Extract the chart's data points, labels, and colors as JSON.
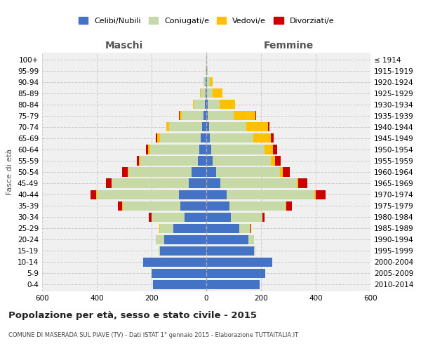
{
  "age_groups": [
    "0-4",
    "5-9",
    "10-14",
    "15-19",
    "20-24",
    "25-29",
    "30-34",
    "35-39",
    "40-44",
    "45-49",
    "50-54",
    "55-59",
    "60-64",
    "65-69",
    "70-74",
    "75-79",
    "80-84",
    "85-89",
    "90-94",
    "95-99",
    "100+"
  ],
  "birth_years": [
    "2010-2014",
    "2005-2009",
    "2000-2004",
    "1995-1999",
    "1990-1994",
    "1985-1989",
    "1980-1984",
    "1975-1979",
    "1970-1974",
    "1965-1969",
    "1960-1964",
    "1955-1959",
    "1950-1954",
    "1945-1949",
    "1940-1944",
    "1935-1939",
    "1930-1934",
    "1925-1929",
    "1920-1924",
    "1915-1919",
    "≤ 1914"
  ],
  "males": {
    "celibi": [
      195,
      200,
      230,
      170,
      155,
      120,
      80,
      95,
      100,
      65,
      55,
      30,
      25,
      20,
      15,
      10,
      5,
      3,
      2,
      1,
      1
    ],
    "coniugati": [
      0,
      0,
      2,
      5,
      30,
      50,
      120,
      210,
      300,
      280,
      230,
      210,
      180,
      150,
      120,
      80,
      40,
      18,
      8,
      1,
      0
    ],
    "vedovi": [
      0,
      0,
      0,
      0,
      0,
      1,
      1,
      2,
      2,
      2,
      3,
      5,
      8,
      10,
      10,
      8,
      5,
      3,
      1,
      0,
      0
    ],
    "divorziati": [
      0,
      0,
      0,
      0,
      0,
      2,
      8,
      15,
      20,
      20,
      20,
      10,
      8,
      4,
      2,
      1,
      0,
      0,
      0,
      0,
      0
    ]
  },
  "females": {
    "nubili": [
      195,
      215,
      240,
      175,
      155,
      120,
      90,
      85,
      75,
      50,
      35,
      22,
      18,
      12,
      10,
      5,
      4,
      3,
      2,
      2,
      1
    ],
    "coniugate": [
      0,
      0,
      2,
      5,
      20,
      40,
      115,
      205,
      320,
      280,
      235,
      215,
      195,
      160,
      135,
      95,
      45,
      20,
      10,
      2,
      0
    ],
    "vedove": [
      0,
      0,
      0,
      0,
      0,
      1,
      1,
      3,
      5,
      5,
      10,
      15,
      30,
      65,
      80,
      80,
      55,
      35,
      12,
      2,
      0
    ],
    "divorziate": [
      0,
      0,
      0,
      0,
      0,
      2,
      8,
      20,
      35,
      35,
      25,
      20,
      15,
      10,
      5,
      2,
      1,
      0,
      0,
      0,
      0
    ]
  },
  "colors": {
    "celibi": "#4472C4",
    "coniugati": "#c8d9a8",
    "vedovi": "#ffc000",
    "divorziati": "#cc0000"
  },
  "title": "Popolazione per età, sesso e stato civile - 2015",
  "subtitle": "COMUNE DI MASERADA SUL PIAVE (TV) - Dati ISTAT 1° gennaio 2015 - Elaborazione TUTTAITALIA.IT",
  "xlabel_left": "Maschi",
  "xlabel_right": "Femmine",
  "ylabel_left": "Fasce di età",
  "xlim": 600,
  "legend_labels": [
    "Celibi/Nubili",
    "Coniugati/e",
    "Vedovi/e",
    "Divorziati/e"
  ],
  "bg_color": "#f0f0f0"
}
